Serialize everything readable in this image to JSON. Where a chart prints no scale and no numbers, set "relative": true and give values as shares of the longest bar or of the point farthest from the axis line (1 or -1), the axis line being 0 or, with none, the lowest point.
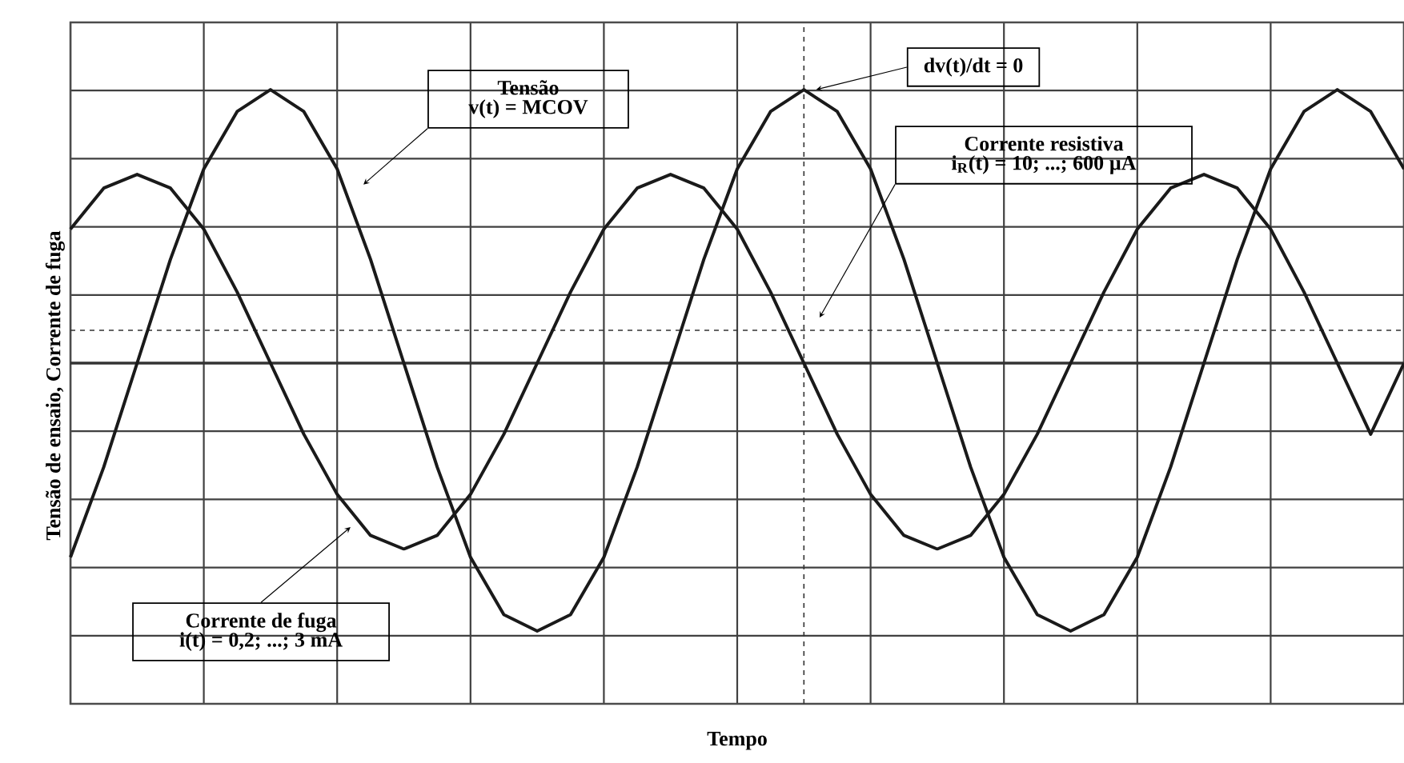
{
  "chart_data": {
    "type": "line",
    "relative": true,
    "xlabel": "Tempo",
    "ylabel": "Tensão de ensaio, Corrente de fuga",
    "categories": [
      null,
      null,
      null,
      null,
      null,
      null,
      null,
      null,
      null,
      null,
      null,
      null,
      null,
      null,
      null,
      null,
      null,
      null,
      null,
      null,
      null,
      null,
      null,
      null,
      null,
      null,
      null,
      null,
      null,
      null,
      null,
      null,
      null,
      null,
      null,
      null,
      null,
      null,
      null,
      null,
      null
    ],
    "grid": true,
    "line_style": "solid",
    "series": [
      {
        "color": "#1a1a1a",
        "values": [
          -0.71,
          -0.38,
          0,
          0.38,
          0.71,
          0.92,
          1,
          0.92,
          0.71,
          0.38,
          0,
          -0.38,
          -0.71,
          -0.92,
          -0.98,
          -0.92,
          -0.71,
          -0.38,
          0,
          0.38,
          0.71,
          0.92,
          1,
          0.92,
          0.71,
          0.38,
          0,
          -0.38,
          -0.71,
          -0.92,
          -0.98,
          -0.92,
          -0.71,
          -0.38,
          0,
          0.38,
          0.71,
          0.92,
          1,
          0.92,
          0.71
        ]
      },
      {
        "color": "#1a1a1a",
        "values": [
          0.49,
          0.64,
          0.69,
          0.64,
          0.49,
          0.26,
          0,
          -0.26,
          -0.48,
          -0.63,
          -0.68,
          -0.63,
          -0.48,
          -0.26,
          0,
          0.26,
          0.49,
          0.64,
          0.69,
          0.64,
          0.49,
          0.26,
          0,
          -0.26,
          -0.48,
          -0.63,
          -0.68,
          -0.63,
          -0.48,
          -0.26,
          0,
          0.26,
          0.49,
          0.64,
          0.69,
          0.64,
          0.49,
          0.26,
          0,
          -0.26,
          0
        ]
      }
    ],
    "ref_lines": [
      {
        "axis": "y",
        "value": 0.12,
        "line_style": "dashed",
        "color": "#333333"
      }
    ],
    "annotations": [
      "Tensão\nv(t) = MCOV",
      "dv(t)/dt = 0",
      "Corrente resistiva\ni$_{R}$(t) = 10; ...; 600 µA",
      "Corrente de fuga\ni(t) = 0,2; ...; 3 mA"
    ]
  }
}
